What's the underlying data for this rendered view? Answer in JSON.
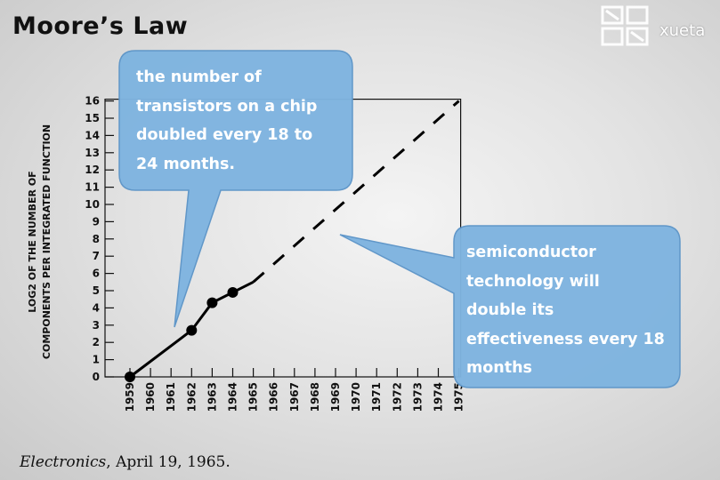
{
  "slide": {
    "title": "Moore’s Law",
    "logo_text": "xueta",
    "source_publication": "Electronics",
    "source_date": ", April 19, 1965."
  },
  "callouts": {
    "left": "the number of\ntransistors on a chip\ndoubled every 18 to\n24 months.",
    "right": "semiconductor\ntechnology will\ndouble its\neffectiveness every 18\nmonths"
  },
  "colors": {
    "bubble": "#7fb4e0",
    "bubble_edge": "#5d95c8",
    "line": "#000000"
  },
  "chart_data": {
    "type": "line",
    "title": "",
    "xlabel": "",
    "ylabel_line1": "LOG2 OF THE NUMBER OF",
    "ylabel_line2": "COMPONENTS PER INTEGRATED FUNCTION",
    "x_categories": [
      "1959",
      "1960",
      "1961",
      "1962",
      "1963",
      "1964",
      "1965",
      "1966",
      "1967",
      "1968",
      "1969",
      "1970",
      "1971",
      "1972",
      "1973",
      "1974",
      "1975"
    ],
    "y_ticks": [
      "0",
      "1",
      "2",
      "3",
      "4",
      "5",
      "6",
      "7",
      "8",
      "9",
      "10",
      "11",
      "12",
      "13",
      "14",
      "15",
      "16"
    ],
    "ylim": [
      0,
      16
    ],
    "series": [
      {
        "style": "solid",
        "points": [
          [
            1959,
            0
          ],
          [
            1962,
            2.7
          ],
          [
            1963,
            4.3
          ],
          [
            1964,
            4.9
          ],
          [
            1965,
            5.5
          ]
        ],
        "markers": [
          [
            1959,
            0
          ],
          [
            1962,
            2.7
          ],
          [
            1963,
            4.3
          ],
          [
            1964,
            4.9
          ]
        ]
      },
      {
        "style": "dashed",
        "points": [
          [
            1965,
            5.5
          ],
          [
            1975,
            16
          ]
        ]
      }
    ],
    "grid": false
  }
}
